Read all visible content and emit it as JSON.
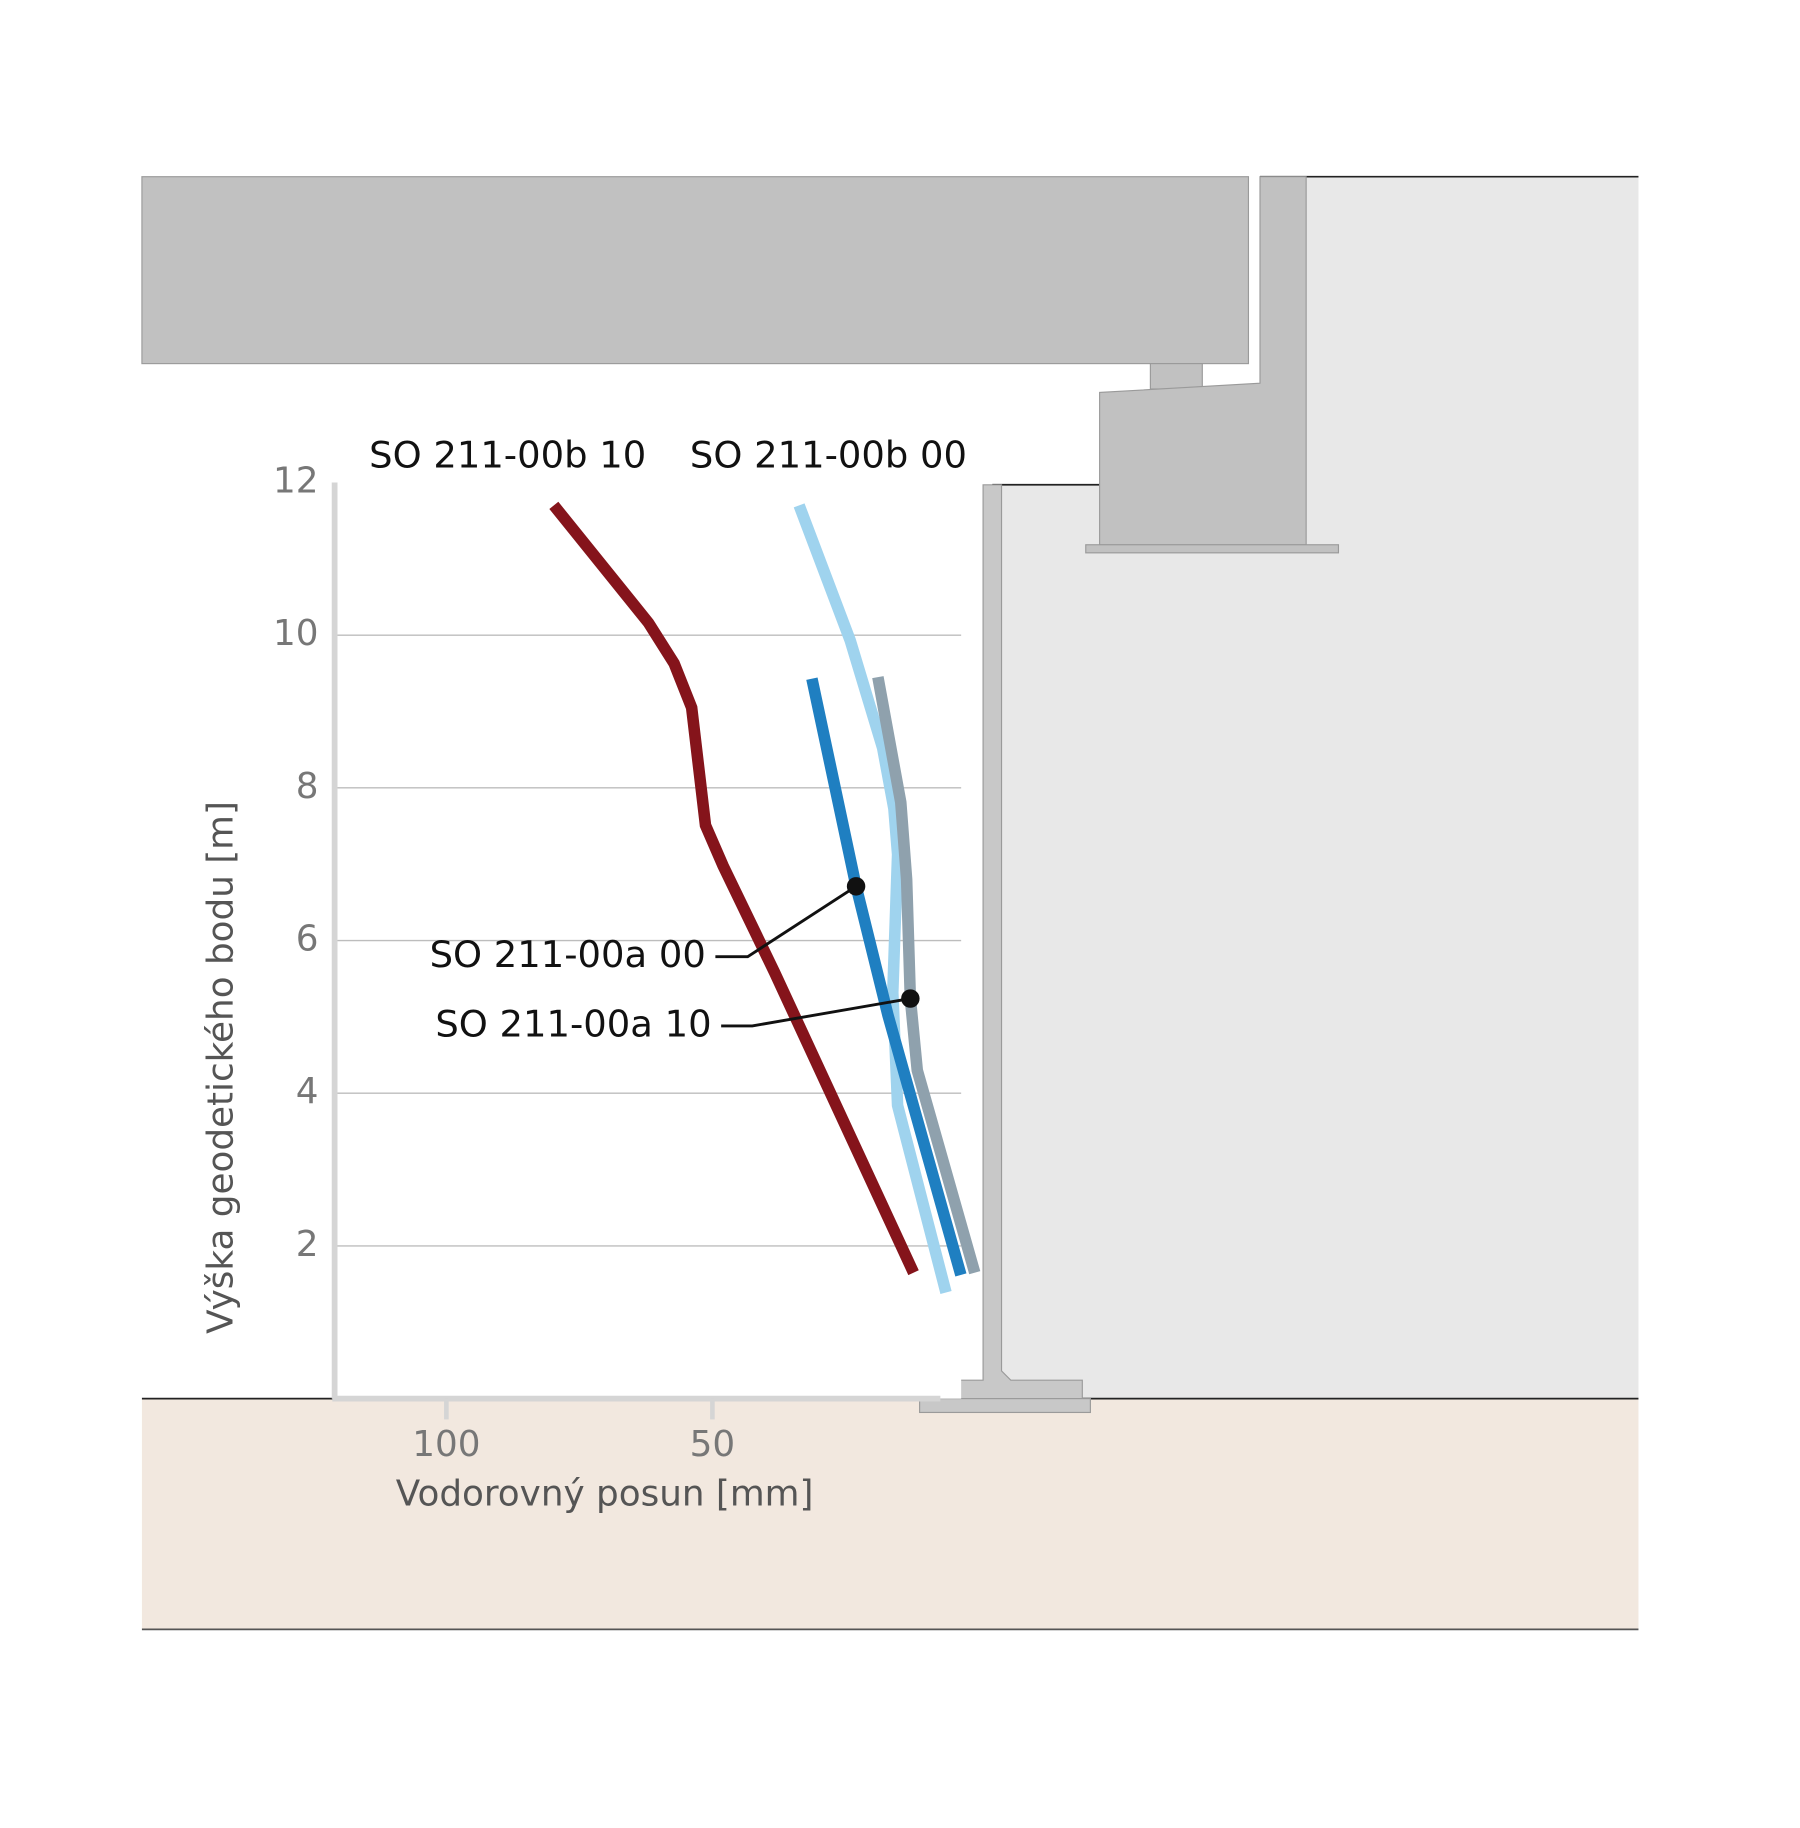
{
  "chart_data": {
    "type": "line",
    "x_label": "Vodorovný posun [mm]",
    "y_label": "Výška geodetického bodu [m]",
    "xlim": [
      121,
      0
    ],
    "xticks": [
      100,
      50
    ],
    "ylim": [
      0,
      12
    ],
    "yticks": [
      2,
      4,
      6,
      8,
      10,
      12
    ],
    "grid": true,
    "series": [
      {
        "name": "SO 211-00b 10",
        "color": "#85141b",
        "x": [
          79.8,
          62.0,
          57.2,
          53.9,
          51.3,
          48.0,
          38.3,
          12.2
        ],
        "values": [
          11.7,
          10.16,
          9.63,
          9.05,
          7.51,
          6.98,
          5.58,
          1.65
        ]
      },
      {
        "name": "SO 211-00b 00",
        "color": "#9fd3ee",
        "x": [
          33.7,
          24.1,
          18.0,
          15.9,
          15.2,
          16.1,
          15.2,
          6.1
        ],
        "values": [
          11.7,
          9.93,
          8.52,
          7.73,
          7.13,
          5.32,
          3.84,
          1.39
        ]
      },
      {
        "name": "SO 211-00a 00",
        "color": "#1f7fc1",
        "x": [
          31.3,
          23.0,
          17.0,
          3.3
        ],
        "values": [
          9.43,
          6.71,
          5.02,
          1.62
        ]
      },
      {
        "name": "SO 211-00a 10",
        "color": "#8fa1ad",
        "x": [
          18.9,
          14.6,
          13.5,
          12.8,
          11.5,
          0.7
        ],
        "values": [
          9.45,
          7.81,
          6.8,
          5.24,
          4.3,
          1.65
        ]
      }
    ]
  }
}
